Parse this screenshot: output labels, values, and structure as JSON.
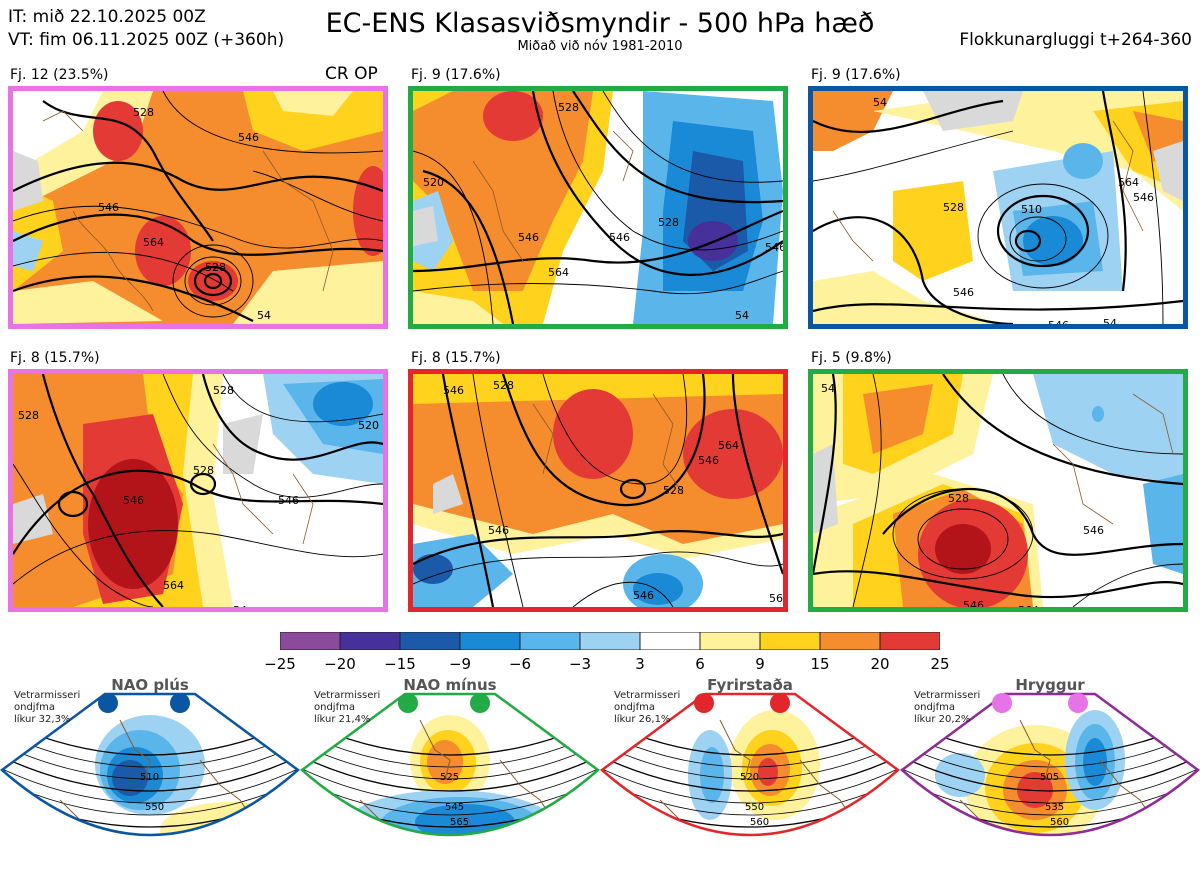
{
  "header": {
    "init_time": "IT: mið 22.10.2025 00Z",
    "valid_time": "VT: fim 06.11.2025 00Z  (+360h)",
    "title": "EC-ENS Klasasviðsmyndir - 500 hPa hæð",
    "subtitle": "Miðað við nóv 1981-2010",
    "window": "Flokkunargluggi t+264-360"
  },
  "panels": [
    {
      "label": "Fj. 12 (23.5%)",
      "tag": "CR OP",
      "border": "#e773e7",
      "contours": [
        "528",
        "546",
        "564",
        "528",
        "546",
        "54"
      ]
    },
    {
      "label": "Fj. 9 (17.6%)",
      "border": "#22aa44",
      "contours": [
        "528",
        "520",
        "546",
        "546",
        "564",
        "528",
        "546",
        "54"
      ]
    },
    {
      "label": "Fj. 9 (17.6%)",
      "border": "#0a56a2",
      "contours": [
        "54",
        "528",
        "510",
        "546",
        "564",
        "546",
        "546",
        "54"
      ]
    },
    {
      "label": "Fj. 8 (15.7%)",
      "border": "#e773e7",
      "contours": [
        "528",
        "528",
        "520",
        "546",
        "528",
        "546",
        "564",
        "54"
      ]
    },
    {
      "label": "Fj. 8 (15.7%)",
      "border": "#e3262b",
      "contours": [
        "546",
        "528",
        "528",
        "546",
        "564",
        "546",
        "546",
        "56"
      ]
    },
    {
      "label": "Fj. 5 (9.8%)",
      "border": "#22aa44",
      "contours": [
        "54",
        "528",
        "546",
        "546",
        "564"
      ]
    }
  ],
  "colorbar": {
    "labels": [
      "−25",
      "−20",
      "−15",
      "−9",
      "−6",
      "−3",
      "3",
      "6",
      "9",
      "15",
      "20",
      "25"
    ],
    "colors": [
      "#8b4a9c",
      "#46309a",
      "#1b5aa8",
      "#1a8ad6",
      "#59b5ea",
      "#9ed2f3",
      "#ffffff",
      "#fff29c",
      "#ffd21e",
      "#f58c2e",
      "#e33a36",
      "#b3141a"
    ]
  },
  "regimes": [
    {
      "title": "NAO plús",
      "note": [
        "Vetrarmisseri",
        "ondjfma",
        "líkur 32,3%"
      ],
      "border": "#0a56a2",
      "dot_color": "#0a56a2",
      "contours": [
        "510",
        "550"
      ]
    },
    {
      "title": "NAO mínus",
      "note": [
        "Vetrarmisseri",
        "ondjfma",
        "líkur 21,4%"
      ],
      "border": "#22aa44",
      "dot_color": "#22aa44",
      "contours": [
        "525",
        "545",
        "565"
      ]
    },
    {
      "title": "Fyrirstaða",
      "note": [
        "Vetrarmisseri",
        "ondjfma",
        "líkur 26,1%"
      ],
      "border": "#e3262b",
      "dot_color": "#e3262b",
      "contours": [
        "520",
        "550",
        "560"
      ]
    },
    {
      "title": "Hryggur",
      "note": [
        "Vetrarmisseri",
        "ondjfma",
        "líkur 20,2%"
      ],
      "border": "#8e2b96",
      "dot_color": "#e773e7",
      "contours": [
        "505",
        "535",
        "560"
      ]
    }
  ]
}
